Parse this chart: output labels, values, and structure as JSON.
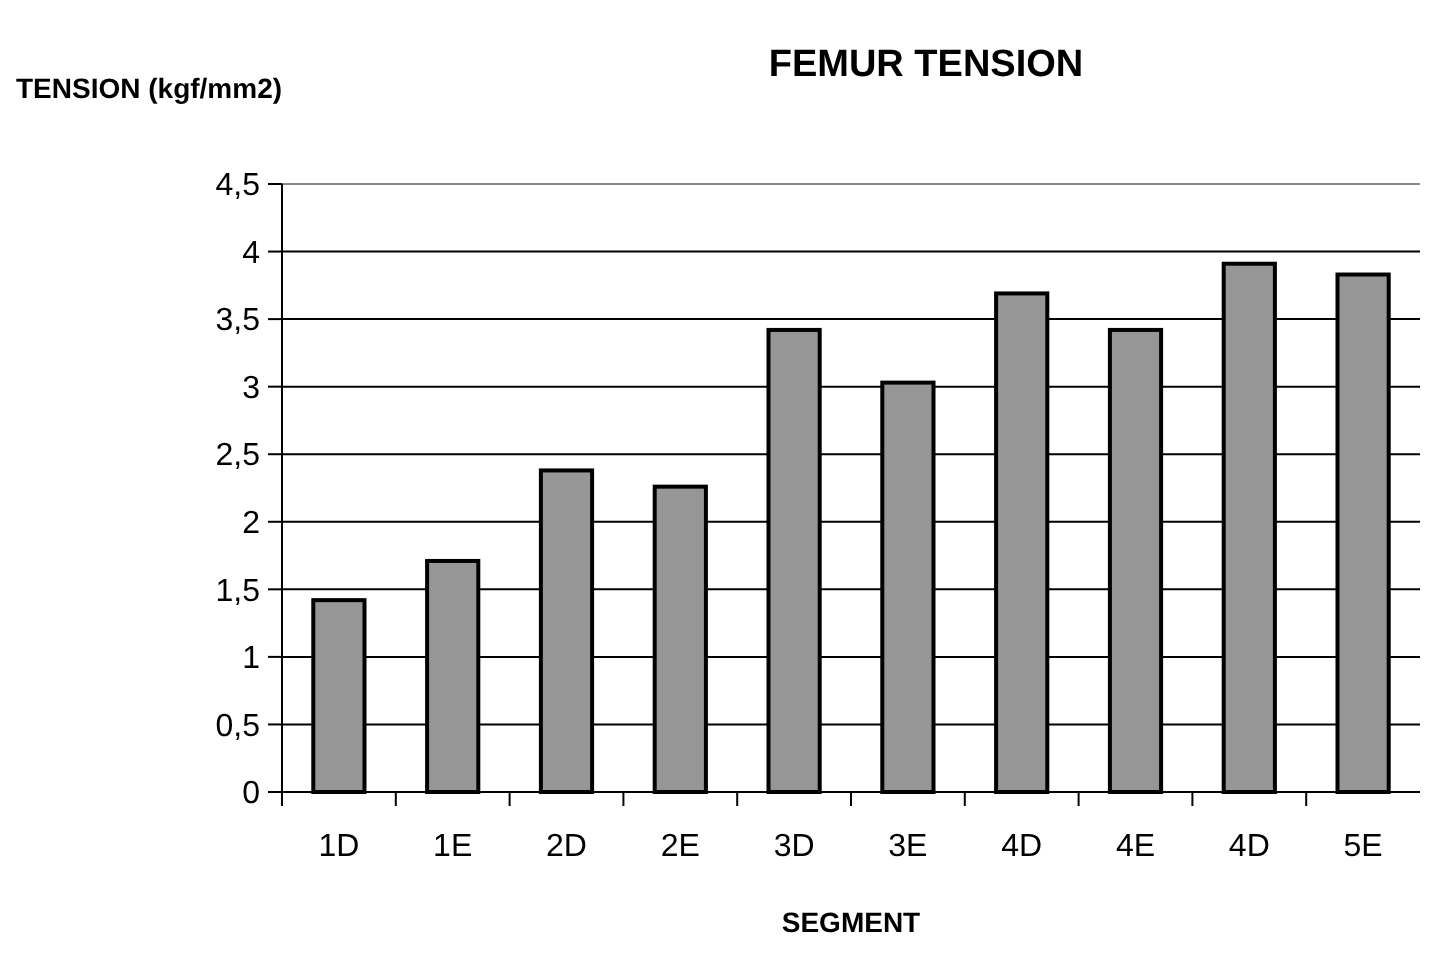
{
  "chart_data": {
    "type": "bar",
    "title": "FEMUR TENSION",
    "xlabel": "SEGMENT",
    "ylabel": "TENSION (kgf/mm2)",
    "categories": [
      "1D",
      "1E",
      "2D",
      "2E",
      "3D",
      "3E",
      "4D",
      "4E",
      "4D",
      "5E"
    ],
    "values": [
      1.42,
      1.71,
      2.38,
      2.26,
      3.42,
      3.03,
      3.69,
      3.42,
      3.91,
      3.83
    ],
    "color": "#969696",
    "ylim": [
      0,
      4.5
    ],
    "yticks": [
      0,
      {
        "value": 0.5,
        "label": "0,5"
      },
      1,
      {
        "value": 1.5,
        "label": "1,5"
      },
      2,
      {
        "value": 2.5,
        "label": "2,5"
      },
      3,
      {
        "value": 3.5,
        "label": "3,5"
      },
      4,
      {
        "value": 4.5,
        "label": "4,5"
      }
    ],
    "grid": "y"
  }
}
